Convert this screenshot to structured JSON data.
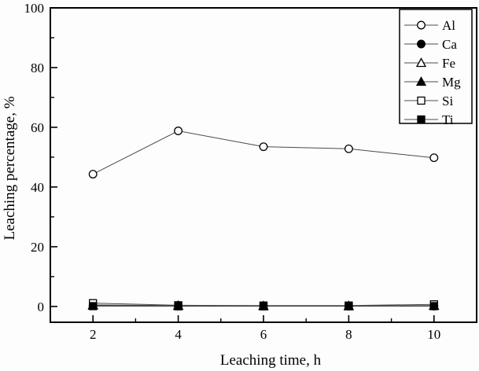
{
  "chart_data": {
    "type": "line",
    "title": "",
    "xlabel": "Leaching time, h",
    "ylabel": "Leaching percentage, %",
    "x": [
      2,
      4,
      6,
      8,
      10
    ],
    "xlim": [
      1,
      11
    ],
    "ylim": [
      -5.3,
      100
    ],
    "x_major_ticks": [
      2,
      4,
      6,
      8,
      10
    ],
    "x_minor_ticks": [
      3,
      5,
      7,
      9
    ],
    "y_major_ticks": [
      0,
      20,
      40,
      60,
      80,
      100
    ],
    "y_minor_ticks": [
      10,
      30,
      50,
      70,
      90
    ],
    "grid": false,
    "legend_position": "top-right",
    "series": [
      {
        "name": "Al",
        "marker": "circle-open",
        "values": [
          44.3,
          58.8,
          53.5,
          52.8,
          49.8
        ]
      },
      {
        "name": "Ca",
        "marker": "circle-filled",
        "values": [
          0.2,
          0.1,
          0.1,
          0.1,
          0.1
        ]
      },
      {
        "name": "Fe",
        "marker": "triangle-open",
        "values": [
          0.5,
          0.3,
          0.2,
          0.2,
          0.3
        ]
      },
      {
        "name": "Mg",
        "marker": "triangle-filled",
        "values": [
          0.3,
          0.2,
          0.1,
          0.1,
          0.2
        ]
      },
      {
        "name": "Si",
        "marker": "square-open",
        "values": [
          1.1,
          0.4,
          0.3,
          0.3,
          0.7
        ]
      },
      {
        "name": "Ti",
        "marker": "square-filled",
        "values": [
          0.1,
          0.05,
          0.05,
          0.05,
          0.1
        ]
      }
    ],
    "colors": {
      "line": "#4a4a4a",
      "marker_stroke": "#000000",
      "marker_open_fill": "#ffffff",
      "marker_filled_fill": "#000000",
      "frame": "#000000",
      "text": "#000000",
      "background": "#fdfdfd"
    }
  },
  "legend": {
    "entries": [
      "Al",
      "Ca",
      "Fe",
      "Mg",
      "Si",
      "Ti"
    ]
  }
}
